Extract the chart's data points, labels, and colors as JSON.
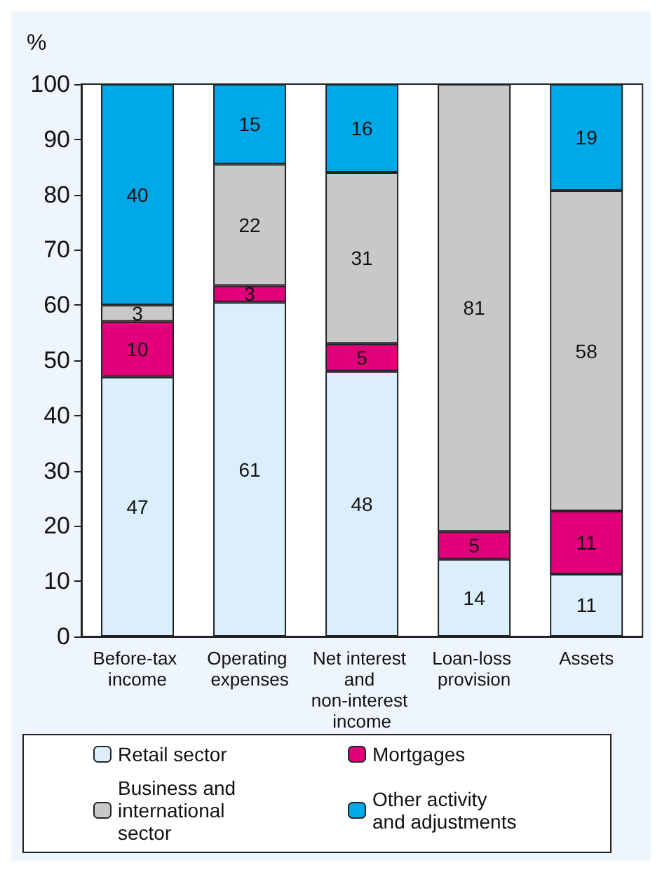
{
  "chart_data": {
    "type": "bar",
    "stacked": true,
    "ylabel": "%",
    "categories": [
      "Before-tax income",
      "Operating expenses",
      "Net interest and non-interest income",
      "Loan-loss provision",
      "Assets"
    ],
    "series": [
      {
        "name": "Retail sector",
        "color": "#dbeefb",
        "values": [
          47,
          60.5,
          48,
          14,
          11.3
        ],
        "value_labels": [
          "47",
          "61",
          "48",
          "14",
          "11"
        ]
      },
      {
        "name": "Mortgages",
        "color": "#e0007a",
        "values": [
          10,
          3,
          5,
          5,
          11.4
        ],
        "value_labels": [
          "10",
          "3",
          "5",
          "5",
          "11"
        ]
      },
      {
        "name": "Business and international sector",
        "color": "#c8c8c8",
        "values": [
          3,
          22,
          31,
          81,
          58
        ],
        "value_labels": [
          "3",
          "22",
          "31",
          "81",
          "58"
        ]
      },
      {
        "name": "Other activity and adjustments",
        "color": "#00a8e8",
        "values": [
          40,
          14.5,
          16,
          null,
          19.3
        ],
        "value_labels": [
          "40",
          "15",
          "16",
          null,
          "19"
        ]
      }
    ],
    "ylim": [
      0,
      100
    ],
    "yticks": [
      0,
      10,
      20,
      30,
      40,
      50,
      60,
      70,
      80,
      90,
      100
    ],
    "grid": false,
    "legend": "bottom"
  }
}
